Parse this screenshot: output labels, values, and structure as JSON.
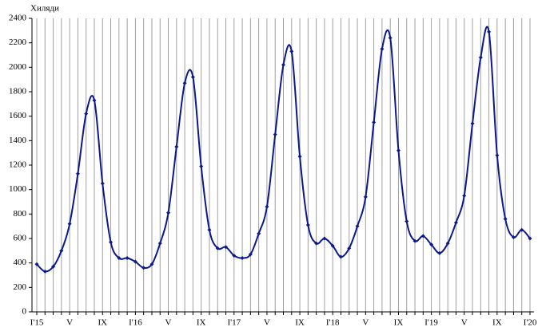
{
  "chart_data": {
    "type": "line",
    "y_label": "Хиляди",
    "categories": [
      "I'15",
      null,
      null,
      null,
      "V",
      null,
      null,
      null,
      "IX",
      null,
      null,
      null,
      "I'16",
      null,
      null,
      null,
      "V",
      null,
      null,
      null,
      "IX",
      null,
      null,
      null,
      "I'17",
      null,
      null,
      null,
      "V",
      null,
      null,
      null,
      "IX",
      null,
      null,
      null,
      "I'18",
      null,
      null,
      null,
      "V",
      null,
      null,
      null,
      "IX",
      null,
      null,
      null,
      "I'19",
      null,
      null,
      null,
      "V",
      null,
      null,
      null,
      "IX",
      null,
      null,
      null,
      "I'20"
    ],
    "series": [
      {
        "color": "#0a1a8c",
        "values": [
          390,
          330,
          370,
          500,
          720,
          1130,
          1620,
          1730,
          1050,
          570,
          440,
          440,
          410,
          360,
          390,
          560,
          810,
          1350,
          1870,
          1920,
          1190,
          670,
          520,
          530,
          460,
          440,
          470,
          640,
          860,
          1450,
          2020,
          2130,
          1270,
          710,
          560,
          600,
          540,
          450,
          520,
          700,
          940,
          1550,
          2150,
          2240,
          1320,
          740,
          580,
          620,
          550,
          480,
          560,
          730,
          950,
          1540,
          2080,
          2290,
          1280,
          760,
          610,
          670,
          600
        ]
      }
    ],
    "ylim": [
      0,
      2400
    ],
    "yticks": [
      0,
      200,
      400,
      600,
      800,
      1000,
      1200,
      1400,
      1600,
      1800,
      2000,
      2200,
      2400
    ],
    "grid": "x"
  }
}
